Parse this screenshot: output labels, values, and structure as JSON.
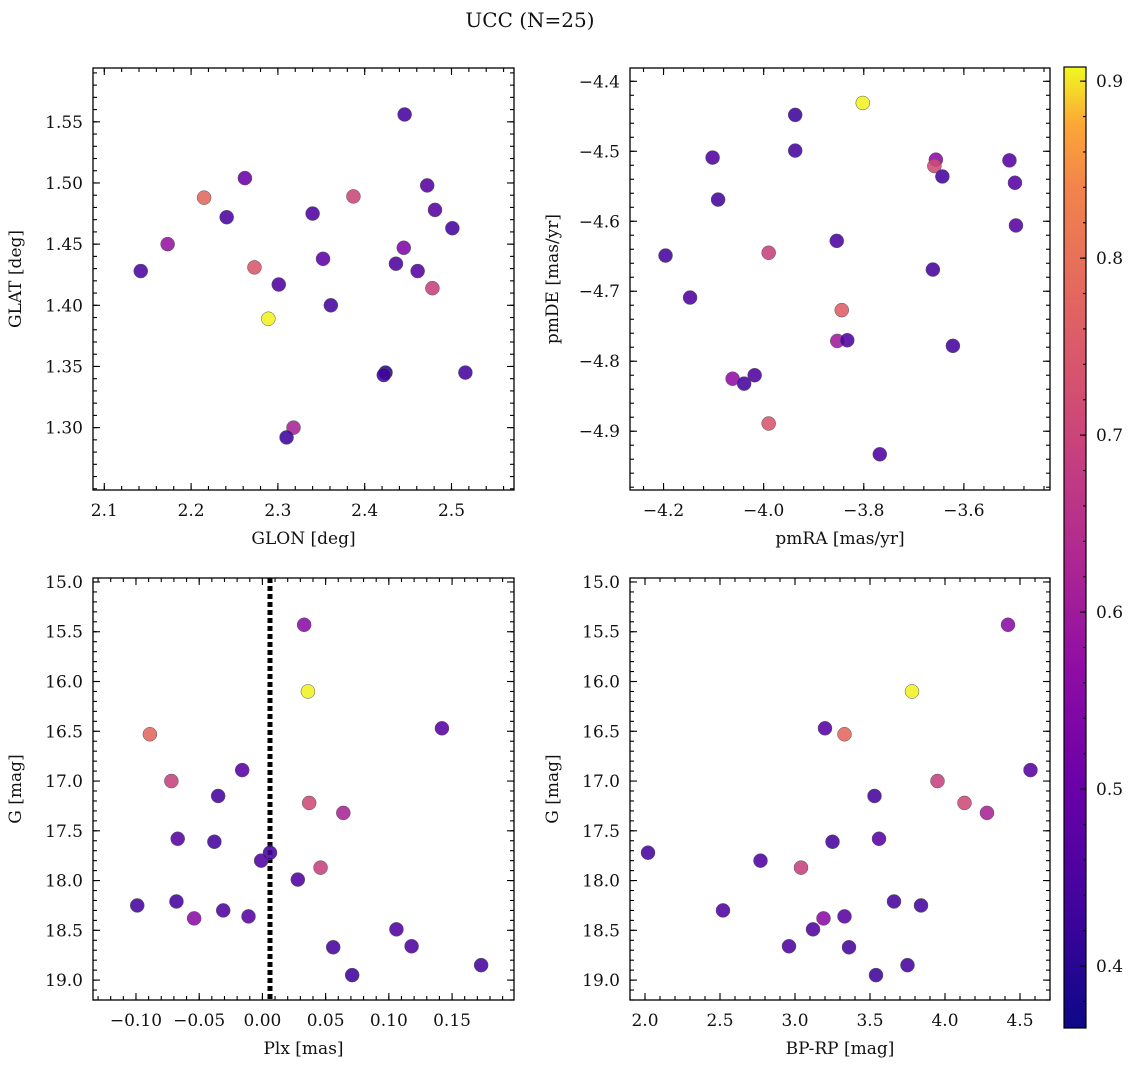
{
  "figure": {
    "suptitle": "UCC (N=25)"
  },
  "colorbar": {
    "colormap": "plasma",
    "vmin": 0.365,
    "vmax": 0.908,
    "ticks": [
      0.4,
      0.5,
      0.6,
      0.7,
      0.8,
      0.9
    ],
    "tick_labels": [
      "0.4",
      "0.5",
      "0.6",
      "0.7",
      "0.8",
      "0.9"
    ]
  },
  "chart_data": [
    {
      "type": "scatter",
      "xlabel": "GLON [deg]",
      "ylabel": "GLAT [deg]",
      "xlim": [
        2.087,
        2.572
      ],
      "ylim": [
        1.249,
        1.594
      ],
      "xticks": [
        2.1,
        2.2,
        2.3,
        2.4,
        2.5
      ],
      "xtick_labels": [
        "2.1",
        "2.2",
        "2.3",
        "2.4",
        "2.5"
      ],
      "yticks": [
        1.3,
        1.35,
        1.4,
        1.45,
        1.5,
        1.55
      ],
      "ytick_labels": [
        "1.30",
        "1.35",
        "1.40",
        "1.45",
        "1.50",
        "1.55"
      ],
      "points": [
        {
          "x": 2.446,
          "y": 1.556,
          "c": 0.44
        },
        {
          "x": 2.262,
          "y": 1.504,
          "c": 0.5
        },
        {
          "x": 2.472,
          "y": 1.498,
          "c": 0.47
        },
        {
          "x": 2.215,
          "y": 1.488,
          "c": 0.78
        },
        {
          "x": 2.387,
          "y": 1.489,
          "c": 0.7
        },
        {
          "x": 2.481,
          "y": 1.478,
          "c": 0.47
        },
        {
          "x": 2.34,
          "y": 1.475,
          "c": 0.46
        },
        {
          "x": 2.241,
          "y": 1.472,
          "c": 0.45
        },
        {
          "x": 2.501,
          "y": 1.463,
          "c": 0.44
        },
        {
          "x": 2.173,
          "y": 1.45,
          "c": 0.58
        },
        {
          "x": 2.445,
          "y": 1.447,
          "c": 0.54
        },
        {
          "x": 2.352,
          "y": 1.438,
          "c": 0.48
        },
        {
          "x": 2.436,
          "y": 1.434,
          "c": 0.46
        },
        {
          "x": 2.273,
          "y": 1.431,
          "c": 0.74
        },
        {
          "x": 2.142,
          "y": 1.428,
          "c": 0.45
        },
        {
          "x": 2.461,
          "y": 1.428,
          "c": 0.47
        },
        {
          "x": 2.301,
          "y": 1.417,
          "c": 0.46
        },
        {
          "x": 2.478,
          "y": 1.414,
          "c": 0.69
        },
        {
          "x": 2.361,
          "y": 1.4,
          "c": 0.44
        },
        {
          "x": 2.289,
          "y": 1.389,
          "c": 0.905
        },
        {
          "x": 2.424,
          "y": 1.345,
          "c": 0.4
        },
        {
          "x": 2.422,
          "y": 1.343,
          "c": 0.43
        },
        {
          "x": 2.516,
          "y": 1.345,
          "c": 0.44
        },
        {
          "x": 2.318,
          "y": 1.3,
          "c": 0.62
        },
        {
          "x": 2.31,
          "y": 1.292,
          "c": 0.43
        }
      ]
    },
    {
      "type": "scatter",
      "xlabel": "pmRA [mas/yr]",
      "ylabel": "pmDE [mas/yr]",
      "xlim": [
        -4.267,
        -3.428
      ],
      "ylim": [
        -4.984,
        -4.381
      ],
      "xticks": [
        -4.2,
        -4.0,
        -3.8,
        -3.6
      ],
      "xtick_labels": [
        "−4.2",
        "−4.0",
        "−3.8",
        "−3.6"
      ],
      "yticks": [
        -4.9,
        -4.8,
        -4.7,
        -4.6,
        -4.5,
        -4.4
      ],
      "ytick_labels": [
        "−4.9",
        "−4.8",
        "−4.7",
        "−4.6",
        "−4.5",
        "−4.4"
      ],
      "points": [
        {
          "x": -3.802,
          "y": -4.431,
          "c": 0.905
        },
        {
          "x": -3.937,
          "y": -4.448,
          "c": 0.43
        },
        {
          "x": -3.937,
          "y": -4.499,
          "c": 0.44
        },
        {
          "x": -4.102,
          "y": -4.509,
          "c": 0.46
        },
        {
          "x": -3.656,
          "y": -4.512,
          "c": 0.56
        },
        {
          "x": -3.659,
          "y": -4.521,
          "c": 0.71
        },
        {
          "x": -3.509,
          "y": -4.513,
          "c": 0.47
        },
        {
          "x": -3.643,
          "y": -4.536,
          "c": 0.44
        },
        {
          "x": -3.498,
          "y": -4.545,
          "c": 0.47
        },
        {
          "x": -4.091,
          "y": -4.569,
          "c": 0.44
        },
        {
          "x": -3.496,
          "y": -4.606,
          "c": 0.47
        },
        {
          "x": -3.854,
          "y": -4.628,
          "c": 0.45
        },
        {
          "x": -3.99,
          "y": -4.645,
          "c": 0.69
        },
        {
          "x": -4.196,
          "y": -4.649,
          "c": 0.44
        },
        {
          "x": -3.662,
          "y": -4.669,
          "c": 0.44
        },
        {
          "x": -4.147,
          "y": -4.709,
          "c": 0.46
        },
        {
          "x": -3.844,
          "y": -4.727,
          "c": 0.76
        },
        {
          "x": -3.853,
          "y": -4.771,
          "c": 0.6
        },
        {
          "x": -3.833,
          "y": -4.77,
          "c": 0.46
        },
        {
          "x": -3.622,
          "y": -4.778,
          "c": 0.44
        },
        {
          "x": -4.018,
          "y": -4.82,
          "c": 0.46
        },
        {
          "x": -4.062,
          "y": -4.825,
          "c": 0.57
        },
        {
          "x": -4.039,
          "y": -4.832,
          "c": 0.44
        },
        {
          "x": -3.99,
          "y": -4.889,
          "c": 0.74
        },
        {
          "x": -3.768,
          "y": -4.933,
          "c": 0.46
        }
      ]
    },
    {
      "type": "scatter",
      "xlabel": "Plx [mas]",
      "ylabel": "G [mag]",
      "xlim": [
        -0.134,
        0.199
      ],
      "ylim": [
        19.2,
        14.96
      ],
      "y_inverted": true,
      "xticks": [
        -0.1,
        -0.05,
        0.0,
        0.05,
        0.1,
        0.15
      ],
      "xtick_labels": [
        "−0.10",
        "−0.05",
        "0.00",
        "0.05",
        "0.10",
        "0.15"
      ],
      "yticks": [
        15.0,
        15.5,
        16.0,
        16.5,
        17.0,
        17.5,
        18.0,
        18.5,
        19.0
      ],
      "ytick_labels": [
        "15.0",
        "15.5",
        "16.0",
        "16.5",
        "17.0",
        "17.5",
        "18.0",
        "18.5",
        "19.0"
      ],
      "vline": {
        "x": 0.006,
        "style": "dotted",
        "color": "#000000"
      },
      "points": [
        {
          "x": 0.033,
          "y": 15.43,
          "c": 0.56
        },
        {
          "x": 0.036,
          "y": 16.1,
          "c": 0.905
        },
        {
          "x": 0.142,
          "y": 16.47,
          "c": 0.47
        },
        {
          "x": -0.089,
          "y": 16.53,
          "c": 0.78
        },
        {
          "x": -0.016,
          "y": 16.89,
          "c": 0.47
        },
        {
          "x": -0.072,
          "y": 17.0,
          "c": 0.69
        },
        {
          "x": -0.035,
          "y": 17.15,
          "c": 0.44
        },
        {
          "x": 0.037,
          "y": 17.22,
          "c": 0.71
        },
        {
          "x": 0.064,
          "y": 17.32,
          "c": 0.62
        },
        {
          "x": -0.067,
          "y": 17.58,
          "c": 0.47
        },
        {
          "x": -0.038,
          "y": 17.61,
          "c": 0.44
        },
        {
          "x": 0.006,
          "y": 17.72,
          "c": 0.44
        },
        {
          "x": -0.001,
          "y": 17.8,
          "c": 0.46
        },
        {
          "x": 0.046,
          "y": 17.87,
          "c": 0.69
        },
        {
          "x": 0.028,
          "y": 17.99,
          "c": 0.46
        },
        {
          "x": -0.068,
          "y": 18.21,
          "c": 0.44
        },
        {
          "x": -0.099,
          "y": 18.25,
          "c": 0.44
        },
        {
          "x": -0.031,
          "y": 18.3,
          "c": 0.46
        },
        {
          "x": -0.011,
          "y": 18.36,
          "c": 0.47
        },
        {
          "x": -0.054,
          "y": 18.38,
          "c": 0.56
        },
        {
          "x": 0.106,
          "y": 18.49,
          "c": 0.46
        },
        {
          "x": 0.056,
          "y": 18.67,
          "c": 0.44
        },
        {
          "x": 0.118,
          "y": 18.66,
          "c": 0.46
        },
        {
          "x": 0.173,
          "y": 18.85,
          "c": 0.44
        },
        {
          "x": 0.071,
          "y": 18.95,
          "c": 0.43
        }
      ]
    },
    {
      "type": "scatter",
      "xlabel": "BP-RP [mag]",
      "ylabel": "G [mag]",
      "xlim": [
        1.9,
        4.7
      ],
      "ylim": [
        19.2,
        14.96
      ],
      "y_inverted": true,
      "xticks": [
        2.0,
        2.5,
        3.0,
        3.5,
        4.0,
        4.5
      ],
      "xtick_labels": [
        "2.0",
        "2.5",
        "3.0",
        "3.5",
        "4.0",
        "4.5"
      ],
      "yticks": [
        15.0,
        15.5,
        16.0,
        16.5,
        17.0,
        17.5,
        18.0,
        18.5,
        19.0
      ],
      "ytick_labels": [
        "15.0",
        "15.5",
        "16.0",
        "16.5",
        "17.0",
        "17.5",
        "18.0",
        "18.5",
        "19.0"
      ],
      "points": [
        {
          "x": 4.42,
          "y": 15.43,
          "c": 0.56
        },
        {
          "x": 3.78,
          "y": 16.1,
          "c": 0.905
        },
        {
          "x": 3.2,
          "y": 16.47,
          "c": 0.47
        },
        {
          "x": 3.33,
          "y": 16.53,
          "c": 0.78
        },
        {
          "x": 4.57,
          "y": 16.89,
          "c": 0.47
        },
        {
          "x": 3.95,
          "y": 17.0,
          "c": 0.69
        },
        {
          "x": 3.53,
          "y": 17.15,
          "c": 0.44
        },
        {
          "x": 4.13,
          "y": 17.22,
          "c": 0.71
        },
        {
          "x": 4.28,
          "y": 17.32,
          "c": 0.62
        },
        {
          "x": 3.56,
          "y": 17.58,
          "c": 0.47
        },
        {
          "x": 3.25,
          "y": 17.61,
          "c": 0.44
        },
        {
          "x": 2.02,
          "y": 17.72,
          "c": 0.44
        },
        {
          "x": 2.77,
          "y": 17.8,
          "c": 0.46
        },
        {
          "x": 3.04,
          "y": 17.87,
          "c": 0.69
        },
        {
          "x": 3.66,
          "y": 18.21,
          "c": 0.44
        },
        {
          "x": 3.84,
          "y": 18.25,
          "c": 0.44
        },
        {
          "x": 2.52,
          "y": 18.3,
          "c": 0.46
        },
        {
          "x": 3.33,
          "y": 18.36,
          "c": 0.47
        },
        {
          "x": 3.19,
          "y": 18.38,
          "c": 0.56
        },
        {
          "x": 3.12,
          "y": 18.49,
          "c": 0.46
        },
        {
          "x": 3.36,
          "y": 18.67,
          "c": 0.44
        },
        {
          "x": 2.96,
          "y": 18.66,
          "c": 0.46
        },
        {
          "x": 3.75,
          "y": 18.85,
          "c": 0.44
        },
        {
          "x": 3.54,
          "y": 18.95,
          "c": 0.43
        }
      ]
    }
  ]
}
